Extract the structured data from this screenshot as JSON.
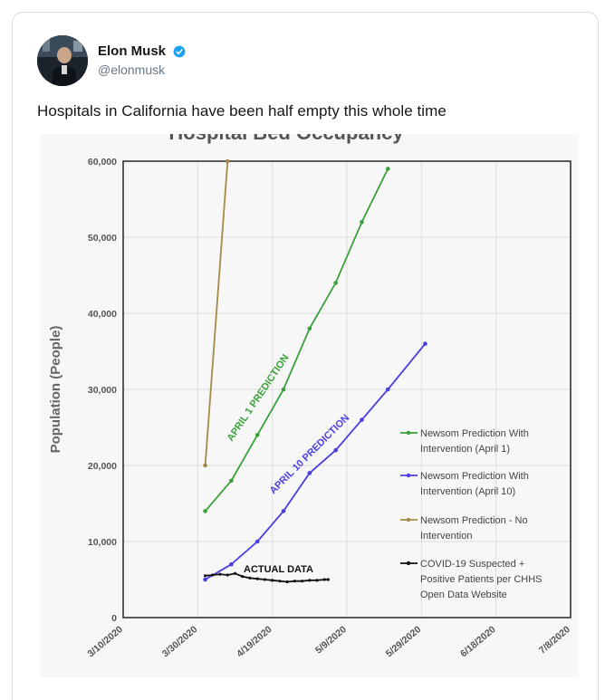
{
  "tweet": {
    "author_name": "Elon Musk",
    "author_handle": "@elonmusk",
    "verified_icon": "verified-badge-icon",
    "text": "Hospitals in California have been half empty this whole time"
  },
  "chart_data": {
    "type": "line",
    "title": "Hospital Bed Occupancy",
    "ylabel": "Population (People)",
    "xlabel": "",
    "ylim": [
      0,
      60000
    ],
    "yticks": [
      {
        "value": 0,
        "label": "0"
      },
      {
        "value": 10000,
        "label": "10,000"
      },
      {
        "value": 20000,
        "label": "20,000"
      },
      {
        "value": 30000,
        "label": "30,000"
      },
      {
        "value": 40000,
        "label": "40,000"
      },
      {
        "value": 50000,
        "label": "50,000"
      },
      {
        "value": 60000,
        "label": "60,000"
      }
    ],
    "xlim": [
      "2020-03-10",
      "2020-07-08"
    ],
    "xticks": [
      {
        "value": "2020-03-10",
        "label": "3/10/2020"
      },
      {
        "value": "2020-03-30",
        "label": "3/30/2020"
      },
      {
        "value": "2020-04-19",
        "label": "4/19/2020"
      },
      {
        "value": "2020-05-09",
        "label": "5/9/2020"
      },
      {
        "value": "2020-05-29",
        "label": "5/29/2020"
      },
      {
        "value": "2020-06-18",
        "label": "6/18/2020"
      },
      {
        "value": "2020-07-08",
        "label": "7/8/2020"
      }
    ],
    "grid": true,
    "legend_position": "right",
    "series": [
      {
        "name": "Newsom Prediction With Intervention (April 1)",
        "color": "#3aa13a",
        "points": [
          {
            "x": "2020-04-01",
            "y": 14000
          },
          {
            "x": "2020-04-08",
            "y": 18000
          },
          {
            "x": "2020-04-15",
            "y": 24000
          },
          {
            "x": "2020-04-22",
            "y": 30000
          },
          {
            "x": "2020-04-29",
            "y": 38000
          },
          {
            "x": "2020-05-06",
            "y": 44000
          },
          {
            "x": "2020-05-13",
            "y": 52000
          },
          {
            "x": "2020-05-20",
            "y": 59000
          }
        ]
      },
      {
        "name": "Newsom Prediction With Intervention (April 10)",
        "color": "#4a3fe0",
        "points": [
          {
            "x": "2020-04-01",
            "y": 5000
          },
          {
            "x": "2020-04-08",
            "y": 7000
          },
          {
            "x": "2020-04-15",
            "y": 10000
          },
          {
            "x": "2020-04-22",
            "y": 14000
          },
          {
            "x": "2020-04-29",
            "y": 19000
          },
          {
            "x": "2020-05-06",
            "y": 22000
          },
          {
            "x": "2020-05-13",
            "y": 26000
          },
          {
            "x": "2020-05-20",
            "y": 30000
          },
          {
            "x": "2020-05-30",
            "y": 36000
          }
        ]
      },
      {
        "name": "Newsom Prediction - No Intervention",
        "color": "#a58a48",
        "points": [
          {
            "x": "2020-04-01",
            "y": 20000
          },
          {
            "x": "2020-04-07",
            "y": 60000
          }
        ]
      },
      {
        "name": "COVID-19 Suspected + Positive Patients per CHHS Open Data Website",
        "color": "#111111",
        "points": [
          {
            "x": "2020-04-01",
            "y": 5500
          },
          {
            "x": "2020-04-03",
            "y": 5600
          },
          {
            "x": "2020-04-05",
            "y": 5700
          },
          {
            "x": "2020-04-07",
            "y": 5600
          },
          {
            "x": "2020-04-09",
            "y": 5800
          },
          {
            "x": "2020-04-11",
            "y": 5400
          },
          {
            "x": "2020-04-13",
            "y": 5200
          },
          {
            "x": "2020-04-15",
            "y": 5100
          },
          {
            "x": "2020-04-17",
            "y": 5000
          },
          {
            "x": "2020-04-19",
            "y": 4900
          },
          {
            "x": "2020-04-21",
            "y": 4800
          },
          {
            "x": "2020-04-23",
            "y": 4700
          },
          {
            "x": "2020-04-25",
            "y": 4800
          },
          {
            "x": "2020-04-27",
            "y": 4800
          },
          {
            "x": "2020-04-29",
            "y": 4900
          },
          {
            "x": "2020-05-01",
            "y": 4900
          },
          {
            "x": "2020-05-03",
            "y": 5000
          },
          {
            "x": "2020-05-04",
            "y": 5000
          }
        ]
      }
    ],
    "legend": [
      {
        "line1": "Newsom Prediction With",
        "line2": "Intervention (April 1)",
        "color": "#3aa13a"
      },
      {
        "line1": "Newsom Prediction With",
        "line2": "Intervention (April 10)",
        "color": "#4a3fe0"
      },
      {
        "line1": "Newsom Prediction - No",
        "line2": "Intervention",
        "color": "#a58a48"
      },
      {
        "line1": "COVID-19 Suspected +",
        "line2": "Positive Patients per CHHS",
        "line3": "Open Data Website",
        "color": "#111111"
      }
    ],
    "annotations": {
      "april1": "APRIL 1 PREDICTION",
      "april10": "APRIL 10 PREDICTION",
      "actual": "ACTUAL DATA"
    }
  }
}
